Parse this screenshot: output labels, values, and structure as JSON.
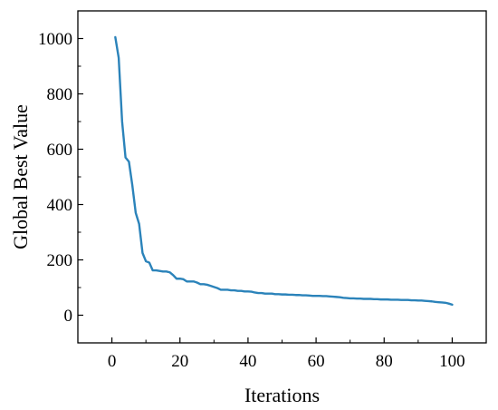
{
  "chart_data": {
    "type": "line",
    "title": "",
    "xlabel": "Iterations",
    "ylabel": "Global Best Value",
    "xlim": [
      -10,
      110
    ],
    "ylim": [
      -100,
      1100
    ],
    "xticks": [
      0,
      20,
      40,
      60,
      80,
      100
    ],
    "yticks": [
      0,
      200,
      400,
      600,
      800,
      1000
    ],
    "grid": false,
    "legend": "none",
    "series": [
      {
        "color": "#2b83ba",
        "x": [
          1,
          2,
          3,
          4,
          5,
          6,
          7,
          8,
          9,
          10,
          11,
          12,
          13,
          14,
          15,
          16,
          17,
          18,
          19,
          20,
          21,
          22,
          23,
          24,
          25,
          26,
          27,
          28,
          29,
          30,
          31,
          32,
          33,
          34,
          35,
          36,
          37,
          38,
          39,
          40,
          41,
          42,
          43,
          44,
          45,
          46,
          47,
          48,
          49,
          50,
          51,
          52,
          53,
          54,
          55,
          56,
          57,
          58,
          59,
          60,
          61,
          62,
          63,
          64,
          65,
          66,
          67,
          68,
          69,
          70,
          71,
          72,
          73,
          74,
          75,
          76,
          77,
          78,
          79,
          80,
          81,
          82,
          83,
          84,
          85,
          86,
          87,
          88,
          89,
          90,
          91,
          92,
          93,
          94,
          95,
          96,
          97,
          98,
          99,
          100
        ],
        "y": [
          1005,
          930,
          700,
          570,
          555,
          470,
          370,
          330,
          225,
          195,
          190,
          162,
          162,
          160,
          158,
          158,
          155,
          145,
          132,
          132,
          130,
          122,
          122,
          122,
          118,
          112,
          112,
          110,
          106,
          102,
          98,
          92,
          92,
          92,
          90,
          90,
          88,
          88,
          86,
          86,
          85,
          82,
          80,
          80,
          78,
          78,
          78,
          76,
          76,
          75,
          75,
          74,
          74,
          73,
          73,
          72,
          72,
          71,
          70,
          70,
          70,
          69,
          69,
          68,
          67,
          66,
          65,
          63,
          62,
          61,
          61,
          60,
          60,
          59,
          59,
          59,
          58,
          58,
          57,
          57,
          57,
          56,
          56,
          56,
          55,
          55,
          55,
          54,
          54,
          53,
          53,
          52,
          51,
          50,
          48,
          47,
          46,
          45,
          42,
          38
        ]
      }
    ]
  }
}
